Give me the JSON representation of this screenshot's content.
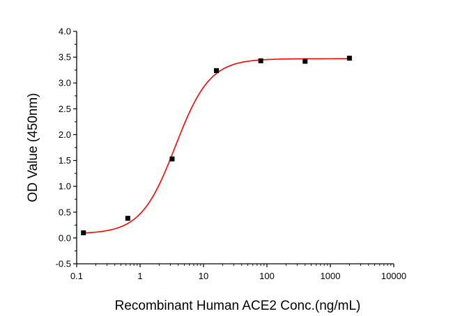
{
  "chart_data": {
    "type": "scatter",
    "xlabel": "Recombinant Human ACE2 Conc.(ng/mL)",
    "ylabel": "OD Value (450nm)",
    "x_scale": "log",
    "xlim": [
      0.1,
      10000
    ],
    "ylim": [
      -0.5,
      4.0
    ],
    "x_ticks": [
      0.1,
      1,
      10,
      100,
      1000,
      10000
    ],
    "x_tick_labels": [
      "0.1",
      "1",
      "10",
      "100",
      "1000",
      "10000"
    ],
    "y_ticks": [
      -0.5,
      0.0,
      0.5,
      1.0,
      1.5,
      2.0,
      2.5,
      3.0,
      3.5,
      4.0
    ],
    "y_tick_labels": [
      "-0.5",
      "0.0",
      "0.5",
      "1.0",
      "1.5",
      "2.0",
      "2.5",
      "3.0",
      "3.5",
      "4.0"
    ],
    "grid": false,
    "series": [
      {
        "type": "scatter",
        "color": "#000000",
        "x": [
          0.128,
          0.64,
          3.2,
          16,
          80,
          400,
          2000
        ],
        "y": [
          0.1,
          0.38,
          1.53,
          3.24,
          3.43,
          3.42,
          3.48
        ]
      },
      {
        "type": "line",
        "color": "#ff0000",
        "fit": "4PL",
        "bottom": 0.08,
        "top": 3.47,
        "ec50": 3.6,
        "hill": 1.6,
        "x_range": [
          0.128,
          2000
        ]
      }
    ]
  }
}
